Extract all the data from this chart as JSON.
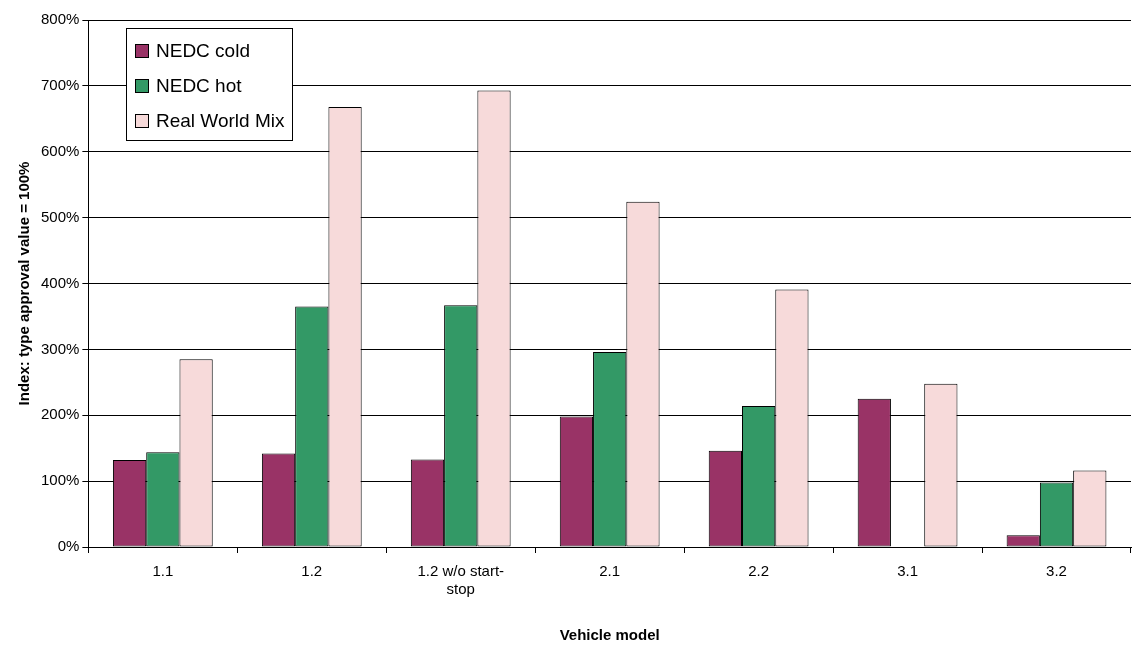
{
  "chart_data": {
    "type": "bar",
    "xlabel": "Vehicle model",
    "ylabel": "Index: type approval value = 100%",
    "categories": [
      "1.1",
      "1.2",
      "1.2 w/o start-stop",
      "2.1",
      "2.2",
      "3.1",
      "3.2"
    ],
    "series": [
      {
        "name": "NEDC cold",
        "color": "#993366",
        "values": [
          132,
          142,
          133,
          198,
          146,
          225,
          18
        ]
      },
      {
        "name": "NEDC hot",
        "color": "#339966",
        "values": [
          144,
          365,
          367,
          296,
          214,
          null,
          98
        ]
      },
      {
        "name": "Real World Mix",
        "color": "#f7dada",
        "values": [
          285,
          668,
          693,
          524,
          391,
          248,
          116
        ]
      }
    ],
    "ylim": [
      0,
      800
    ],
    "yticks": [
      {
        "value": 0,
        "label": "0%"
      },
      {
        "value": 100,
        "label": "100%"
      },
      {
        "value": 200,
        "label": "200%"
      },
      {
        "value": 300,
        "label": "300%"
      },
      {
        "value": 400,
        "label": "400%"
      },
      {
        "value": 500,
        "label": "500%"
      },
      {
        "value": 600,
        "label": "600%"
      },
      {
        "value": 700,
        "label": "700%"
      },
      {
        "value": 800,
        "label": "800%"
      }
    ],
    "grid": "y",
    "legend": "top left"
  }
}
